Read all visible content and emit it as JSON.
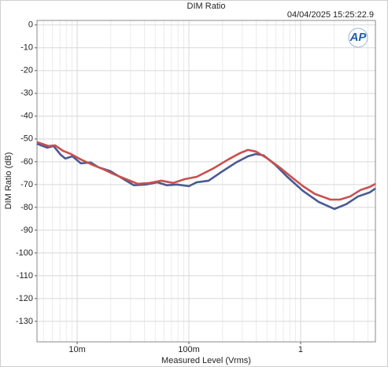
{
  "chart_data": {
    "type": "line",
    "title": "DIM Ratio",
    "timestamp": "04/04/2025 15:25:22.9",
    "logo": "AP",
    "x_label": "Measured Level (Vrms)",
    "y_label": "DIM Ratio (dB)",
    "xscale": "log",
    "grid": true,
    "xlim": [
      0.00437,
      4.67
    ],
    "ylim": [
      -139,
      2
    ],
    "xticks": [
      {
        "value": 0.01,
        "label": "10m"
      },
      {
        "value": 0.1,
        "label": "100m"
      },
      {
        "value": 1,
        "label": "1"
      }
    ],
    "xminorticks": [
      0.005,
      0.006,
      0.007,
      0.008,
      0.009,
      0.02,
      0.03,
      0.04,
      0.05,
      0.06,
      0.07,
      0.08,
      0.09,
      0.2,
      0.3,
      0.4,
      0.5,
      0.6,
      0.7,
      0.8,
      0.9,
      2,
      3,
      4
    ],
    "yticks": [
      0,
      -10,
      -20,
      -30,
      -40,
      -50,
      -60,
      -70,
      -80,
      -90,
      -100,
      -110,
      -120,
      -130
    ],
    "series": [
      {
        "color": "#4a5a92",
        "x": [
          0.00437,
          0.0054,
          0.00615,
          0.00711,
          0.00784,
          0.00907,
          0.0108,
          0.0132,
          0.0155,
          0.0198,
          0.0252,
          0.0322,
          0.041,
          0.0523,
          0.0636,
          0.0784,
          0.1,
          0.1175,
          0.15,
          0.191,
          0.265,
          0.338,
          0.397,
          0.467,
          0.595,
          0.759,
          1.05,
          1.45,
          2.01,
          2.56,
          3.27,
          4.17,
          4.67
        ],
        "values": [
          -52.1,
          -53.8,
          -53.1,
          -56.9,
          -58.6,
          -57.6,
          -60.7,
          -60.3,
          -62.4,
          -64.1,
          -67.2,
          -70.3,
          -70,
          -69,
          -70.3,
          -70,
          -70.7,
          -69,
          -68.3,
          -64.8,
          -60.3,
          -57.6,
          -56.6,
          -57.2,
          -61.4,
          -66.6,
          -72.8,
          -77.6,
          -80.7,
          -78.6,
          -75.2,
          -73.4,
          -71.7
        ]
      },
      {
        "color": "#c9504d",
        "x": [
          0.00437,
          0.00557,
          0.00635,
          0.00747,
          0.00879,
          0.0108,
          0.0138,
          0.0168,
          0.0214,
          0.0273,
          0.0349,
          0.0445,
          0.0567,
          0.0723,
          0.0923,
          0.1175,
          0.163,
          0.225,
          0.287,
          0.338,
          0.397,
          0.506,
          0.646,
          0.823,
          1.05,
          1.34,
          1.85,
          2.25,
          2.78,
          3.43,
          4.17,
          4.67
        ],
        "values": [
          -51.4,
          -53.1,
          -52.8,
          -55.2,
          -56.6,
          -59,
          -61.4,
          -63.1,
          -65.5,
          -67.6,
          -69.7,
          -69.3,
          -68.3,
          -69.3,
          -67.6,
          -66.6,
          -63.1,
          -59,
          -56.2,
          -54.8,
          -55.5,
          -58.6,
          -62.4,
          -66.6,
          -70.7,
          -74.1,
          -76.6,
          -76.6,
          -75.2,
          -72.4,
          -71,
          -69.7
        ]
      }
    ]
  }
}
